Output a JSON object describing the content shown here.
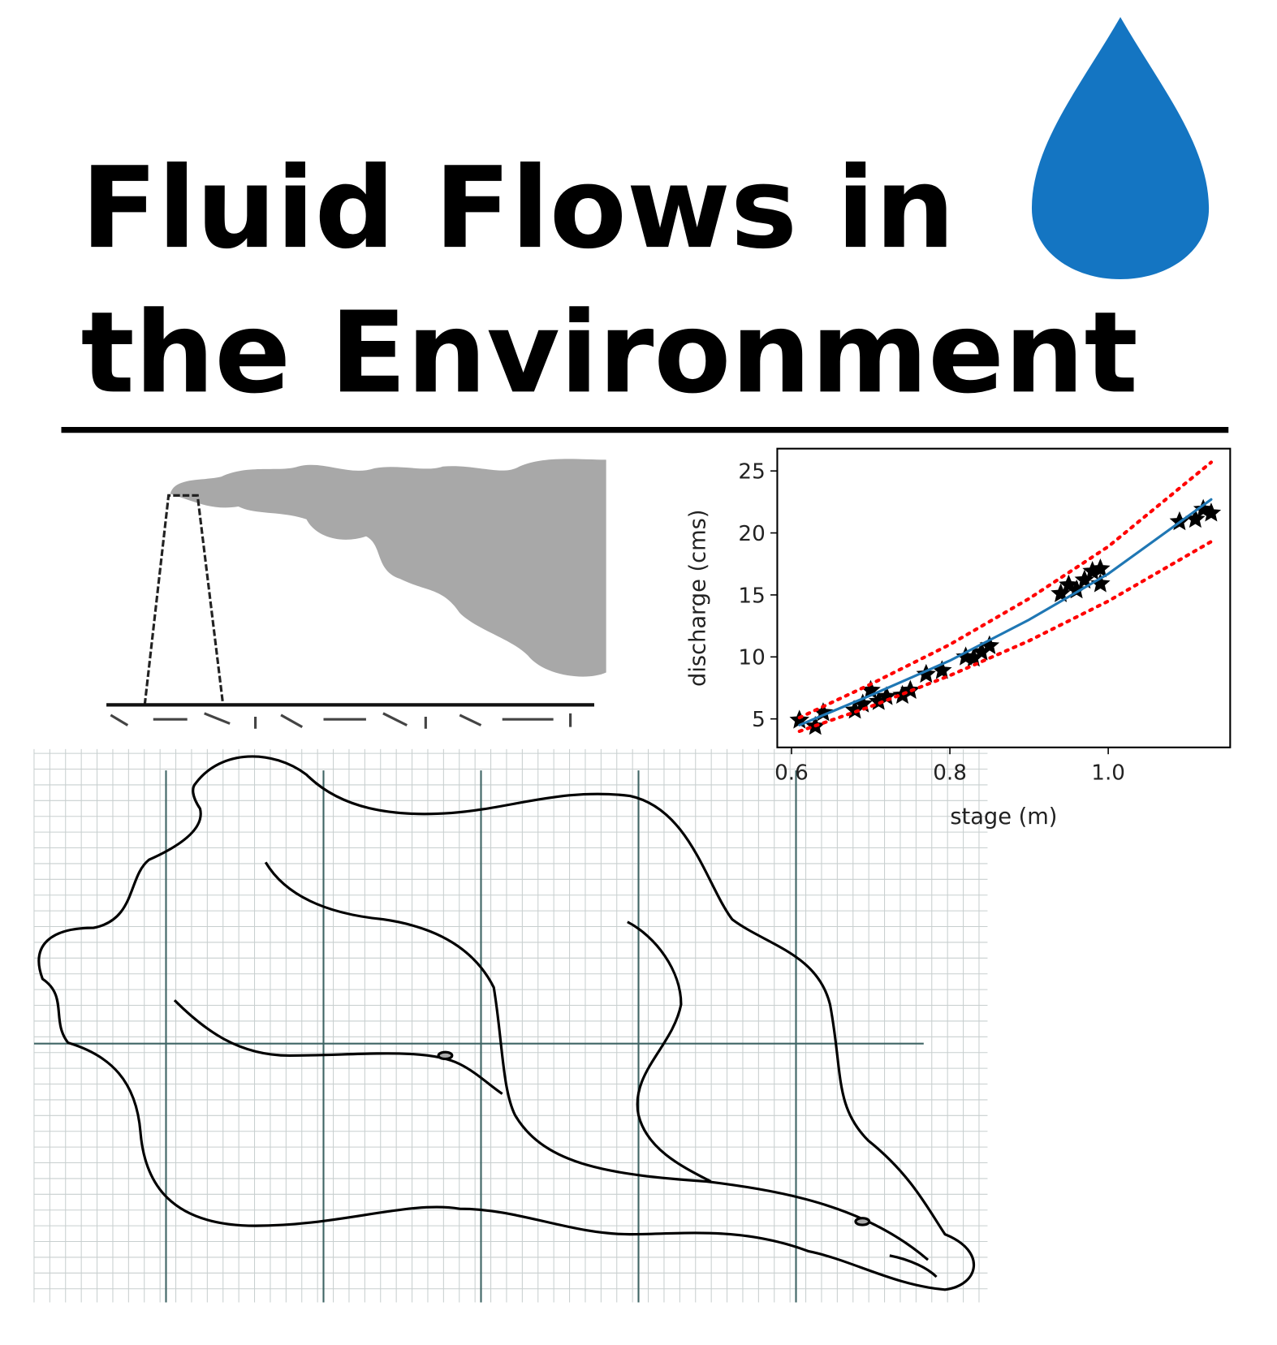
{
  "title": [
    "Fluid Flows in",
    "the Environment"
  ],
  "chart_data": {
    "type": "scatter",
    "xlabel": "stage (m)",
    "ylabel": "discharge (cms)",
    "xlim": [
      0.582,
      1.154
    ],
    "ylim": [
      2.7,
      26.8
    ],
    "xticks": [
      0.6,
      0.8,
      {
        "value": 1,
        "label": "1.0"
      }
    ],
    "yticks": [
      5,
      10,
      15,
      20,
      25
    ],
    "series": [
      {
        "color": "#000000",
        "style": "star",
        "x": [
          0.61,
          0.63,
          0.64,
          0.68,
          0.69,
          0.7,
          0.71,
          0.72,
          0.74,
          0.75,
          0.77,
          0.79,
          0.82,
          0.83,
          0.84,
          0.85,
          0.94,
          0.95,
          0.96,
          0.97,
          0.98,
          0.99,
          0.99,
          1.09,
          1.11,
          1.12,
          1.13
        ],
        "values": [
          4.9,
          4.4,
          5.5,
          5.7,
          6.2,
          7.3,
          6.4,
          6.8,
          6.9,
          7.3,
          8.6,
          8.9,
          10.0,
          9.9,
          10.4,
          10.9,
          15.1,
          15.8,
          15.4,
          16.2,
          16.9,
          15.9,
          17.1,
          20.9,
          21.1,
          21.9,
          21.6
        ]
      },
      {
        "color": "#1f77b4",
        "style": "solid",
        "x": [
          0.61,
          0.7,
          0.8,
          0.9,
          1.0,
          1.13
        ],
        "values": [
          4.5,
          6.9,
          9.7,
          13.0,
          16.7,
          22.7
        ]
      },
      {
        "color": "#ff0000",
        "style": "dotted",
        "x": [
          0.61,
          0.7,
          0.8,
          0.9,
          1.0,
          1.13
        ],
        "values": [
          5.1,
          7.8,
          11.0,
          14.7,
          18.9,
          25.7
        ]
      },
      {
        "color": "#ff0000",
        "style": "dotted",
        "x": [
          0.61,
          0.7,
          0.8,
          0.9,
          1.0,
          1.13
        ],
        "values": [
          4.0,
          6.0,
          8.5,
          11.3,
          14.5,
          19.3
        ]
      }
    ]
  }
}
